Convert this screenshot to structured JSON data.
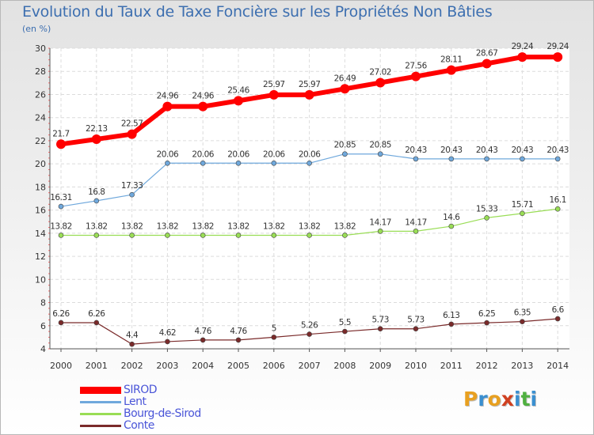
{
  "title": "Evolution du Taux de Taxe Foncière sur les Propriétés Non Bâties",
  "unit": "(en %)",
  "logo": {
    "letters": [
      "P",
      "r",
      "o",
      "x",
      "i",
      "t",
      "i"
    ],
    "colors": [
      "#e8a020",
      "#3a8fd0",
      "#e8a020",
      "#d04020",
      "#3a8fd0",
      "#50b040",
      "#3a8fd0"
    ]
  },
  "chart_data": {
    "type": "line",
    "title": "Evolution du Taux de Taxe Foncière sur les Propriétés Non Bâties",
    "ylabel": "(en %)",
    "xlabel": "",
    "x": [
      "2000",
      "2001",
      "2002",
      "2003",
      "2004",
      "2005",
      "2006",
      "2007",
      "2008",
      "2009",
      "2010",
      "2011",
      "2012",
      "2013",
      "2014"
    ],
    "ylim": [
      4,
      30
    ],
    "yticks": [
      "4",
      "6",
      "8",
      "10",
      "12",
      "14",
      "16",
      "18",
      "20",
      "22",
      "24",
      "26",
      "28",
      "30"
    ],
    "grid": true,
    "legend": "bottom-left",
    "series": [
      {
        "name": "SIROD",
        "color": "#ff0000",
        "values": [
          21.7,
          22.13,
          22.57,
          24.96,
          24.96,
          25.46,
          25.97,
          25.97,
          26.49,
          27.02,
          27.56,
          28.11,
          28.67,
          29.24,
          29.24
        ],
        "labels": [
          "21.7",
          "22.13",
          "22.57",
          "24.96",
          "24.96",
          "25.46",
          "25.97",
          "25.97",
          "26.49",
          "27.02",
          "27.56",
          "28.11",
          "28.67",
          "29.24",
          "29.24"
        ]
      },
      {
        "name": "Lent",
        "color": "#6fa8dc",
        "values": [
          16.31,
          16.8,
          17.33,
          20.06,
          20.06,
          20.06,
          20.06,
          20.06,
          20.85,
          20.85,
          20.43,
          20.43,
          20.43,
          20.43,
          20.43
        ],
        "labels": [
          "16.31",
          "16.8",
          "17.33",
          "20.06",
          "20.06",
          "20.06",
          "20.06",
          "20.06",
          "20.85",
          "20.85",
          "20.43",
          "20.43",
          "20.43",
          "20.43",
          "20.43"
        ]
      },
      {
        "name": "Bourg-de-Sirod",
        "color": "#99dd55",
        "values": [
          13.82,
          13.82,
          13.82,
          13.82,
          13.82,
          13.82,
          13.82,
          13.82,
          13.82,
          14.17,
          14.17,
          14.6,
          15.33,
          15.71,
          16.1
        ],
        "labels": [
          "13.82",
          "13.82",
          "13.82",
          "13.82",
          "13.82",
          "13.82",
          "13.82",
          "13.82",
          "13.82",
          "14.17",
          "14.17",
          "14.6",
          "15.33",
          "15.71",
          "16.1"
        ]
      },
      {
        "name": "Conte",
        "color": "#7a2a2a",
        "values": [
          6.26,
          6.26,
          4.4,
          4.62,
          4.76,
          4.76,
          5.0,
          5.26,
          5.5,
          5.73,
          5.73,
          6.13,
          6.25,
          6.35,
          6.6
        ],
        "labels": [
          "6.26",
          "6.26",
          "4.4",
          "4.62",
          "4.76",
          "4.76",
          "5",
          "5.26",
          "5.5",
          "5.73",
          "5.73",
          "6.13",
          "6.25",
          "6.35",
          "6.6"
        ]
      }
    ]
  }
}
